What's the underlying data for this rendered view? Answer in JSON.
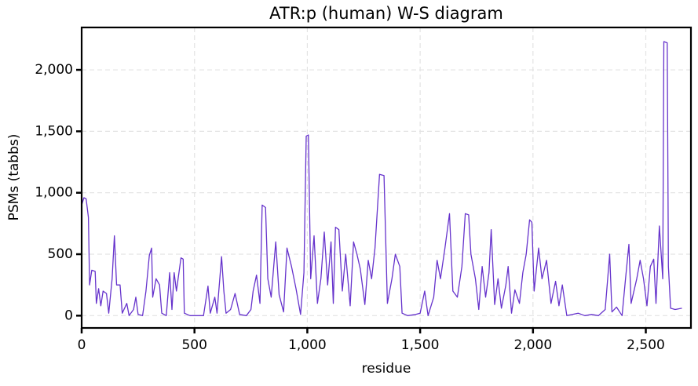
{
  "chart_data": {
    "type": "line",
    "title": "ATR:p (human) W-S diagram",
    "x_label": "residue",
    "y_label": "PSMs (tabbs)",
    "xlim": [
      0,
      2700
    ],
    "ylim": [
      -100,
      2345
    ],
    "xticks": [
      0,
      500,
      {
        "value": 1000,
        "label": "1,000"
      },
      {
        "value": 1500,
        "label": "1,500"
      },
      {
        "value": 2000,
        "label": "2,000"
      },
      {
        "value": 2500,
        "label": "2,500"
      }
    ],
    "yticks": [
      0,
      500,
      {
        "value": 1000,
        "label": "1,000"
      },
      {
        "value": 1500,
        "label": "1,500"
      },
      {
        "value": 2000,
        "label": "2,000"
      }
    ],
    "grid": true,
    "color": "#6633cc",
    "x": [
      0,
      10,
      20,
      30,
      35,
      45,
      60,
      65,
      75,
      85,
      95,
      110,
      120,
      135,
      145,
      155,
      170,
      180,
      200,
      210,
      230,
      240,
      250,
      270,
      285,
      300,
      310,
      315,
      330,
      345,
      355,
      375,
      390,
      400,
      410,
      420,
      440,
      450,
      455,
      480,
      500,
      540,
      560,
      570,
      590,
      600,
      620,
      630,
      640,
      660,
      680,
      700,
      730,
      750,
      760,
      775,
      790,
      800,
      815,
      825,
      840,
      860,
      875,
      895,
      910,
      930,
      950,
      970,
      985,
      995,
      1005,
      1015,
      1030,
      1045,
      1060,
      1075,
      1090,
      1105,
      1115,
      1125,
      1140,
      1155,
      1170,
      1190,
      1205,
      1220,
      1235,
      1255,
      1270,
      1285,
      1300,
      1320,
      1340,
      1355,
      1375,
      1390,
      1410,
      1420,
      1445,
      1480,
      1500,
      1520,
      1535,
      1560,
      1575,
      1590,
      1610,
      1630,
      1645,
      1665,
      1685,
      1700,
      1715,
      1725,
      1745,
      1760,
      1775,
      1790,
      1805,
      1815,
      1830,
      1845,
      1860,
      1880,
      1890,
      1905,
      1920,
      1940,
      1955,
      1970,
      1985,
      1995,
      2005,
      2025,
      2040,
      2060,
      2080,
      2100,
      2115,
      2130,
      2150,
      2200,
      2230,
      2260,
      2290,
      2320,
      2340,
      2350,
      2370,
      2395,
      2410,
      2425,
      2435,
      2460,
      2475,
      2490,
      2505,
      2520,
      2535,
      2545,
      2560,
      2575,
      2580,
      2595,
      2600,
      2610,
      2630,
      2660
    ],
    "values": [
      900,
      960,
      950,
      800,
      250,
      370,
      360,
      100,
      220,
      80,
      200,
      180,
      20,
      300,
      650,
      250,
      250,
      20,
      100,
      0,
      50,
      150,
      10,
      0,
      200,
      490,
      550,
      150,
      300,
      250,
      20,
      0,
      350,
      50,
      350,
      200,
      470,
      460,
      20,
      0,
      0,
      0,
      240,
      20,
      150,
      20,
      480,
      200,
      20,
      50,
      180,
      10,
      0,
      50,
      200,
      330,
      100,
      900,
      880,
      300,
      150,
      600,
      170,
      30,
      550,
      400,
      220,
      10,
      350,
      1460,
      1470,
      300,
      650,
      100,
      300,
      680,
      250,
      600,
      100,
      720,
      700,
      200,
      500,
      80,
      600,
      500,
      380,
      90,
      450,
      300,
      550,
      1150,
      1140,
      100,
      300,
      500,
      400,
      20,
      0,
      10,
      20,
      200,
      0,
      150,
      450,
      300,
      550,
      830,
      200,
      150,
      400,
      830,
      820,
      500,
      300,
      50,
      400,
      150,
      350,
      700,
      90,
      300,
      60,
      250,
      400,
      20,
      210,
      100,
      350,
      500,
      780,
      760,
      200,
      550,
      300,
      450,
      100,
      280,
      80,
      250,
      0,
      20,
      0,
      10,
      0,
      50,
      500,
      30,
      70,
      0,
      300,
      580,
      100,
      300,
      450,
      300,
      80,
      400,
      460,
      100,
      730,
      300,
      2230,
      2220,
      400,
      60,
      50,
      60
    ]
  }
}
